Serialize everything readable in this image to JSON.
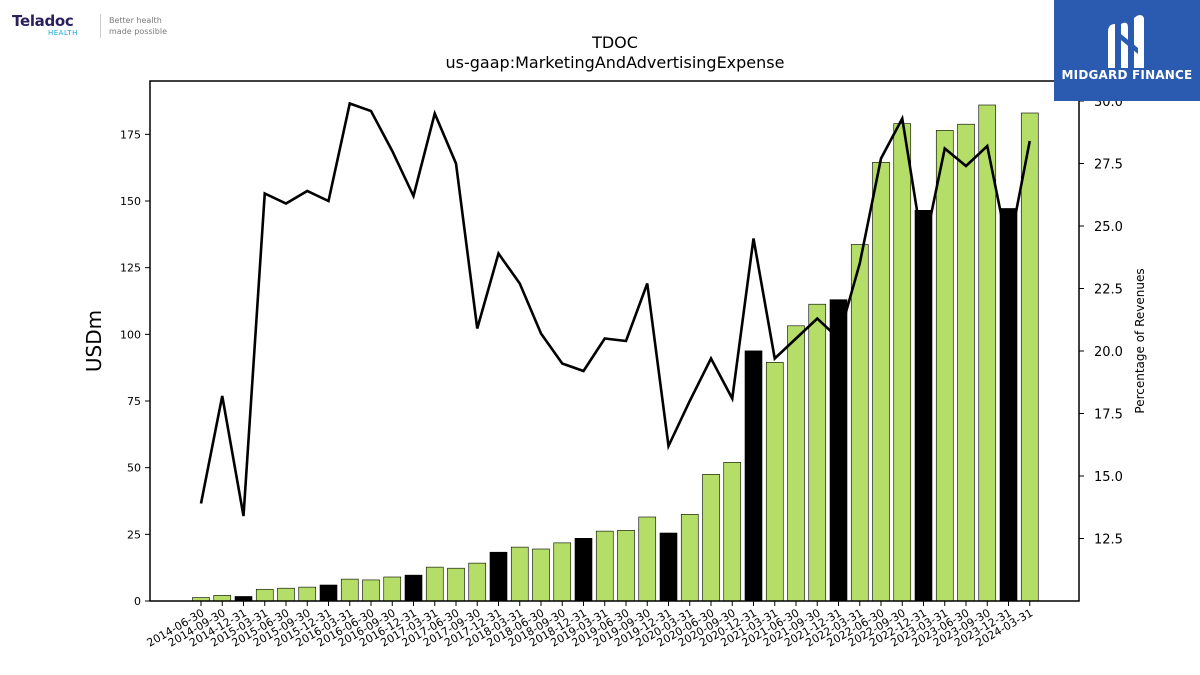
{
  "logo_left": {
    "name": "Teladoc",
    "sub": "HEALTH",
    "tagline_1": "Better health",
    "tagline_2": "made possible"
  },
  "logo_right": {
    "name": "MIDGARD FINANCE"
  },
  "chart_data": {
    "type": "bar",
    "title": "TDOC",
    "subtitle": "us-gaap:MarketingAndAdvertisingExpense",
    "ylabel": "USDm",
    "y2label": "Percentage of Revenues",
    "ylim": [
      0,
      195
    ],
    "y2lim": [
      10.0,
      30.8
    ],
    "yticks": [
      0,
      25,
      50,
      75,
      100,
      125,
      150,
      175
    ],
    "y2ticks": [
      "12.5",
      "15.0",
      "17.5",
      "20.0",
      "22.5",
      "25.0",
      "27.5",
      "30.0"
    ],
    "categories": [
      "2014-06-30",
      "2014-09-30",
      "2014-12-31",
      "2015-03-31",
      "2015-06-30",
      "2015-09-30",
      "2015-12-31",
      "2016-03-31",
      "2016-06-30",
      "2016-09-30",
      "2016-12-31",
      "2017-03-31",
      "2017-06-30",
      "2017-09-30",
      "2017-12-31",
      "2018-03-31",
      "2018-06-30",
      "2018-09-30",
      "2018-12-31",
      "2019-03-31",
      "2019-06-30",
      "2019-09-30",
      "2019-12-31",
      "2020-03-31",
      "2020-06-30",
      "2020-09-30",
      "2020-12-31",
      "2021-03-31",
      "2021-06-30",
      "2021-09-30",
      "2021-12-31",
      "2022-03-31",
      "2022-06-30",
      "2022-09-30",
      "2022-12-31",
      "2023-03-31",
      "2023-06-30",
      "2023-09-30",
      "2023-12-31",
      "2024-03-31"
    ],
    "series": [
      {
        "type": "bar",
        "values": [
          1.3,
          2.1,
          1.7,
          4.4,
          4.8,
          5.2,
          6.0,
          8.2,
          7.9,
          9.0,
          9.7,
          12.7,
          12.3,
          14.2,
          18.3,
          20.2,
          19.5,
          21.8,
          23.5,
          26.2,
          26.5,
          31.5,
          25.5,
          32.5,
          47.5,
          52.0,
          93.8,
          89.5,
          103.2,
          111.3,
          113.0,
          133.7,
          164.5,
          179.0,
          146.5,
          176.5,
          178.8,
          186.0,
          147.2,
          183.0
        ],
        "highlight": [
          false,
          false,
          true,
          false,
          false,
          false,
          true,
          false,
          false,
          false,
          true,
          false,
          false,
          false,
          true,
          false,
          false,
          false,
          true,
          false,
          false,
          false,
          true,
          false,
          false,
          false,
          true,
          false,
          false,
          false,
          true,
          false,
          false,
          false,
          true,
          false,
          false,
          false,
          true,
          false
        ],
        "color": "#b5de68",
        "highlight_color": "#000000"
      },
      {
        "type": "line",
        "axis": "y2",
        "values": [
          13.9,
          18.2,
          13.4,
          26.3,
          25.9,
          26.4,
          26.0,
          29.9,
          29.6,
          28.0,
          26.2,
          29.5,
          27.5,
          20.9,
          23.9,
          22.7,
          20.7,
          19.5,
          19.2,
          20.5,
          20.4,
          22.7,
          16.2,
          18.0,
          19.7,
          18.1,
          24.5,
          19.7,
          20.5,
          21.3,
          20.5,
          23.5,
          27.7,
          29.3,
          24.0,
          28.1,
          27.4,
          28.2,
          24.0,
          28.4
        ],
        "color": "#000000"
      }
    ]
  }
}
